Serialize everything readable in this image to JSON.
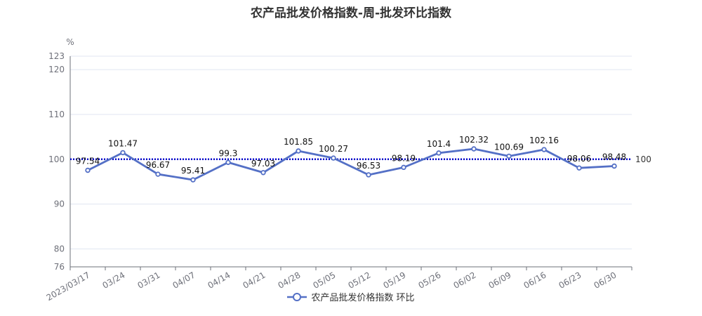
{
  "chart_data": {
    "type": "line",
    "title": "农产品批发价格指数-周-批发环比指数",
    "ylabel": "%",
    "ylim": [
      76,
      123
    ],
    "yticks": [
      76,
      80,
      90,
      100,
      110,
      120,
      123
    ],
    "grid": true,
    "legend_position": "bottom",
    "categories": [
      "2023/03/17",
      "03/24",
      "03/31",
      "04/07",
      "04/14",
      "04/21",
      "04/28",
      "05/05",
      "05/12",
      "05/19",
      "05/26",
      "06/02",
      "06/09",
      "06/16",
      "06/23",
      "06/30"
    ],
    "series": [
      {
        "name": "农产品批发价格指数 环比",
        "color": "#5470c6",
        "values": [
          97.54,
          101.47,
          96.67,
          95.41,
          99.3,
          97.03,
          101.85,
          100.27,
          96.53,
          98.19,
          101.4,
          102.32,
          100.69,
          102.16,
          98.06,
          98.48
        ],
        "labels": [
          "97.54",
          "101.47",
          "96.67",
          "95.41",
          "99.3",
          "97.03",
          "101.85",
          "100.27",
          "96.53",
          "98.19",
          "101.4",
          "102.32",
          "100.69",
          "102.16",
          "98.06",
          "98.48"
        ]
      }
    ],
    "reference_line": {
      "value": 100,
      "label": "100",
      "color": "#0000cc",
      "style": "dotted"
    }
  }
}
